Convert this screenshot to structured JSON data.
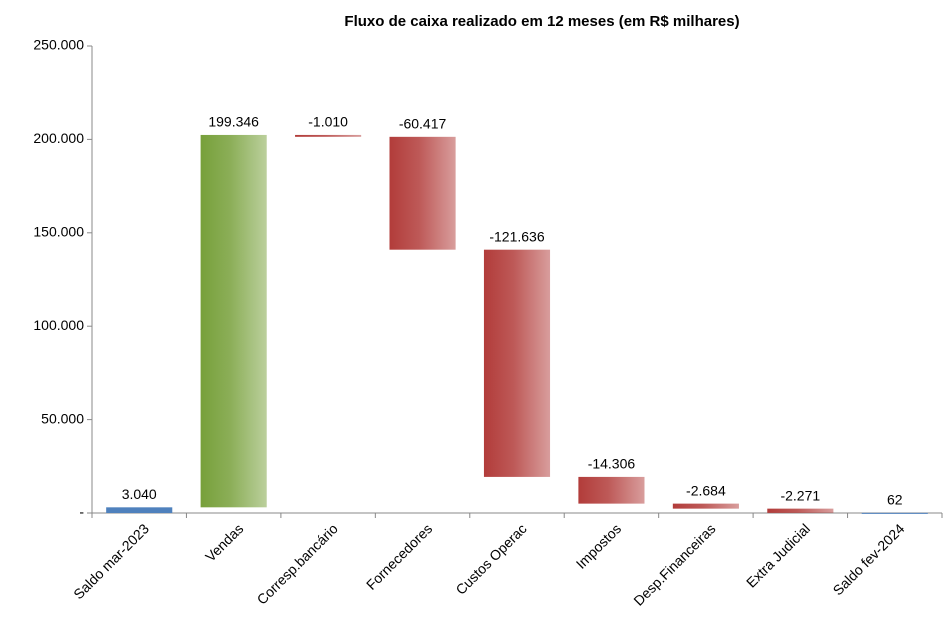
{
  "chart_data": {
    "type": "waterfall",
    "title": "Fluxo de caixa realizado em 12 meses (em  R$ milhares)",
    "categories": [
      "Saldo mar-2023",
      "Vendas",
      "Corresp.bancário",
      "Fornecedores",
      "Custos Operac",
      "Impostos",
      "Desp.Financeiras",
      "Extra Judicial",
      "Saldo fev-2024"
    ],
    "values": [
      3040,
      199346,
      -1010,
      -60417,
      -121636,
      -14306,
      -2684,
      -2271,
      62
    ],
    "value_labels": [
      "3.040",
      "199.346",
      "-1.010",
      "-60.417",
      "-121.636",
      "-14.306",
      "-2.684",
      "-2.271",
      "62"
    ],
    "is_total": [
      true,
      false,
      false,
      false,
      false,
      false,
      false,
      false,
      true
    ],
    "total_color": "#4f81bd",
    "increase_color": "#77a03a",
    "decrease_color": "#b23c3a",
    "ylim": [
      0,
      250000
    ],
    "yticks": [
      {
        "value": 0,
        "label": "-"
      },
      {
        "value": 50000,
        "label": "50.000"
      },
      {
        "value": 100000,
        "label": "100.000"
      },
      {
        "value": 150000,
        "label": "150.000"
      },
      {
        "value": 200000,
        "label": "200.000"
      },
      {
        "value": 250000,
        "label": "250.000"
      }
    ],
    "grid": false
  }
}
